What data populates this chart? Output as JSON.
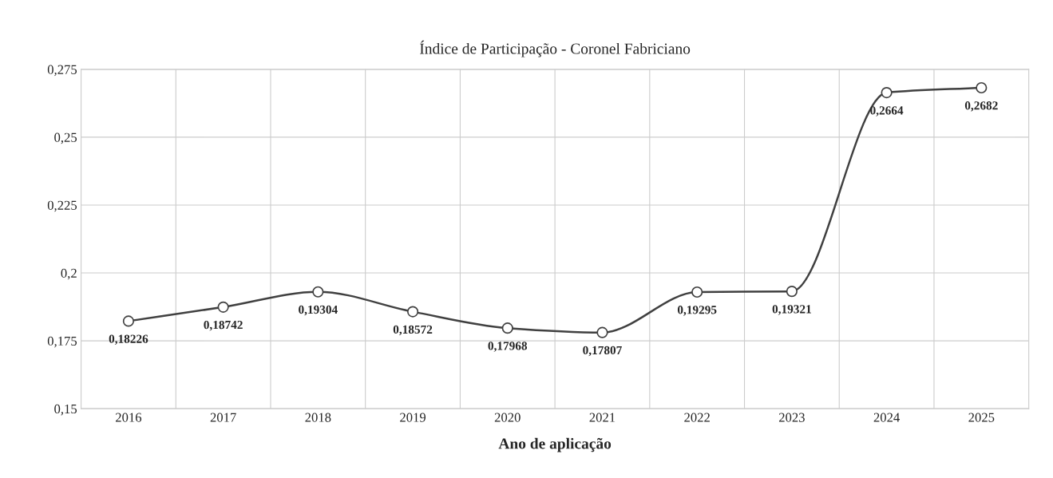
{
  "chart_data": {
    "type": "line",
    "title": "Índice de Participação - Coronel Fabriciano",
    "xlabel": "Ano de aplicação",
    "categories": [
      "2016",
      "2017",
      "2018",
      "2019",
      "2020",
      "2021",
      "2022",
      "2023",
      "2024",
      "2025"
    ],
    "series": [
      {
        "color": "#404040",
        "values": [
          0.18226,
          0.18742,
          0.19304,
          0.18572,
          0.17968,
          0.17807,
          0.19295,
          0.19321,
          0.2664,
          0.2682
        ],
        "value_labels": [
          "0,18226",
          "0,18742",
          "0,19304",
          "0,18572",
          "0,17968",
          "0,17807",
          "0,19295",
          "0,19321",
          "0,2664",
          "0,2682"
        ]
      }
    ],
    "ylim": [
      0.15,
      0.275
    ],
    "yticks": [
      {
        "value": 0.15,
        "label": "0,15"
      },
      {
        "value": 0.175,
        "label": "0,175"
      },
      {
        "value": 0.2,
        "label": "0,2"
      },
      {
        "value": 0.225,
        "label": "0,225"
      },
      {
        "value": 0.25,
        "label": "0,25"
      },
      {
        "value": 0.275,
        "label": "0,275"
      }
    ],
    "grid": true,
    "marker": "circle",
    "line_style": "solid",
    "legend": false
  }
}
